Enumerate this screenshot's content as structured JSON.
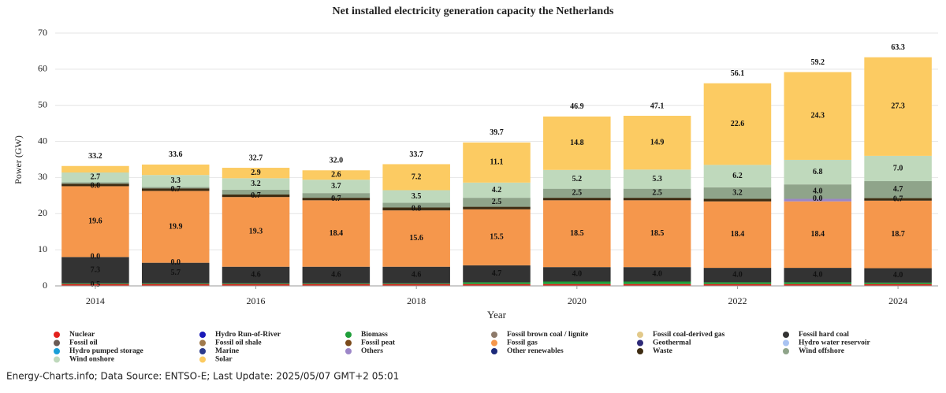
{
  "chart_data": {
    "type": "stacked-bar",
    "title": "Net installed electricity generation capacity the Netherlands",
    "x_label": "Year",
    "y_label": "Power (GW)",
    "x": [
      2014,
      2015,
      2016,
      2017,
      2018,
      2019,
      2020,
      2021,
      2022,
      2023,
      2024
    ],
    "xlim": [
      2013.5,
      2024.5
    ],
    "xticks": [
      2014,
      2016,
      2018,
      2020,
      2022,
      2024
    ],
    "ylim": [
      0,
      70
    ],
    "yticks": [
      0,
      10,
      20,
      30,
      40,
      50,
      60,
      70
    ],
    "grid": true,
    "series": [
      {
        "name": "Nuclear",
        "color": "#e3211c",
        "values": [
          0.5,
          0.5,
          0.5,
          0.5,
          0.5,
          0.5,
          0.5,
          0.5,
          0.5,
          0.5,
          0.5
        ],
        "value_labels": [
          "0.5",
          null,
          null,
          null,
          null,
          null,
          null,
          null,
          null,
          null,
          null
        ]
      },
      {
        "name": "Hydro Run-of-River",
        "color": "#1a1ab8",
        "values": [
          null,
          null,
          null,
          null,
          null,
          null,
          null,
          null,
          null,
          null,
          null
        ]
      },
      {
        "name": "Biomass",
        "color": "#1f9e3a",
        "values": [
          0.2,
          0.2,
          0.2,
          0.2,
          0.2,
          0.5,
          0.7,
          0.7,
          0.5,
          0.5,
          0.4
        ]
      },
      {
        "name": "Fossil brown coal / lignite",
        "color": "#8d7a6a",
        "values": [
          null,
          null,
          null,
          null,
          null,
          null,
          null,
          null,
          null,
          null,
          null
        ]
      },
      {
        "name": "Fossil coal-derived gas",
        "color": "#e2c98a",
        "values": [
          null,
          null,
          null,
          null,
          null,
          null,
          null,
          null,
          null,
          null,
          null
        ]
      },
      {
        "name": "Fossil hard coal",
        "color": "#333333",
        "values": [
          7.3,
          5.7,
          4.6,
          4.6,
          4.6,
          4.7,
          4.0,
          4.0,
          4.0,
          4.0,
          4.0
        ],
        "value_labels": [
          "7.3",
          "5.7",
          "4.6",
          "4.6",
          "4.6",
          "4.7",
          "4.0",
          "4.0",
          "4.0",
          "4.0",
          "4.0"
        ]
      },
      {
        "name": "Fossil oil",
        "color": "#6b5b55",
        "values": [
          0.0,
          0.0,
          null,
          null,
          null,
          null,
          null,
          null,
          null,
          null,
          null
        ],
        "value_labels": [
          "0.0",
          "0.0",
          null,
          null,
          null,
          null,
          null,
          null,
          null,
          null,
          null
        ]
      },
      {
        "name": "Fossil oil shale",
        "color": "#a07a4c",
        "values": [
          null,
          null,
          null,
          null,
          null,
          null,
          null,
          null,
          null,
          null,
          null
        ]
      },
      {
        "name": "Fossil peat",
        "color": "#7a4a1a",
        "values": [
          null,
          null,
          null,
          null,
          null,
          null,
          null,
          null,
          null,
          null,
          null
        ]
      },
      {
        "name": "Fossil gas",
        "color": "#f5974c",
        "values": [
          19.6,
          19.9,
          19.3,
          18.4,
          15.6,
          15.5,
          18.5,
          18.5,
          18.4,
          18.4,
          18.7
        ],
        "value_labels": [
          "19.6",
          "19.9",
          "19.3",
          "18.4",
          "15.6",
          "15.5",
          "18.5",
          "18.5",
          "18.4",
          "18.4",
          "18.7"
        ]
      },
      {
        "name": "Geothermal",
        "color": "#2e2a78",
        "values": [
          null,
          null,
          null,
          null,
          null,
          null,
          null,
          null,
          null,
          null,
          null
        ]
      },
      {
        "name": "Hydro water reservoir",
        "color": "#a9c3f2",
        "values": [
          null,
          null,
          null,
          null,
          null,
          null,
          null,
          null,
          null,
          null,
          null
        ]
      },
      {
        "name": "Hydro pumped storage",
        "color": "#1a9fd8",
        "values": [
          null,
          null,
          null,
          null,
          null,
          null,
          null,
          null,
          null,
          null,
          null
        ]
      },
      {
        "name": "Marine",
        "color": "#2b3a8c",
        "values": [
          null,
          null,
          null,
          null,
          null,
          null,
          null,
          null,
          null,
          null,
          null
        ]
      },
      {
        "name": "Others",
        "color": "#9c86c8",
        "values": [
          0.0,
          null,
          null,
          null,
          null,
          null,
          null,
          null,
          null,
          0.7,
          null
        ],
        "value_labels": [
          "0.0",
          null,
          null,
          null,
          null,
          null,
          null,
          null,
          null,
          null,
          null
        ]
      },
      {
        "name": "Other renewables",
        "color": "#1c2a7a",
        "values": [
          null,
          null,
          null,
          null,
          null,
          null,
          null,
          null,
          null,
          null,
          null
        ]
      },
      {
        "name": "Waste",
        "color": "#3e2c12",
        "values": [
          0.7,
          0.7,
          0.7,
          0.7,
          0.8,
          0.7,
          0.7,
          0.7,
          0.7,
          0.0,
          0.7
        ],
        "value_labels": [
          null,
          "0.7",
          "0.7",
          "0.7",
          "0.8",
          null,
          null,
          null,
          null,
          "0.0",
          "0.7"
        ]
      },
      {
        "name": "Wind offshore",
        "color": "#8fa48a",
        "values": [
          0.4,
          0.4,
          1.3,
          1.3,
          1.3,
          2.5,
          2.5,
          2.5,
          3.2,
          4.0,
          4.7
        ],
        "value_labels": [
          null,
          null,
          null,
          null,
          null,
          "2.5",
          "2.5",
          "2.5",
          "3.2",
          "4.0",
          "4.7"
        ]
      },
      {
        "name": "Wind onshore",
        "color": "#bfd9bc",
        "values": [
          2.7,
          3.3,
          3.2,
          3.7,
          3.5,
          4.2,
          5.2,
          5.3,
          6.2,
          6.8,
          7.0
        ],
        "value_labels": [
          "2.7",
          "3.3",
          "3.2",
          "3.7",
          "3.5",
          "4.2",
          "5.2",
          "5.3",
          "6.2",
          "6.8",
          "7.0"
        ]
      },
      {
        "name": "Solar",
        "color": "#fccb62",
        "values": [
          1.8,
          2.9,
          2.9,
          2.6,
          7.2,
          11.1,
          14.8,
          14.9,
          22.6,
          24.3,
          27.3
        ],
        "value_labels": [
          null,
          null,
          "2.9",
          "2.6",
          "7.2",
          "11.1",
          "14.8",
          "14.9",
          "22.6",
          "24.3",
          "27.3"
        ]
      }
    ],
    "totals": {
      "values": [
        33.2,
        33.6,
        32.7,
        32.0,
        33.7,
        39.7,
        46.9,
        47.1,
        56.1,
        59.2,
        63.3
      ],
      "value_labels": [
        "33.2",
        "33.6",
        "32.7",
        "32.0",
        "33.7",
        "39.7",
        "46.9",
        "47.1",
        "56.1",
        "59.2",
        "63.3"
      ]
    },
    "source": "Energy-Charts.info; Data Source: ENTSO-E; Last Update: 2025/05/07 GMT+2 05:01"
  }
}
